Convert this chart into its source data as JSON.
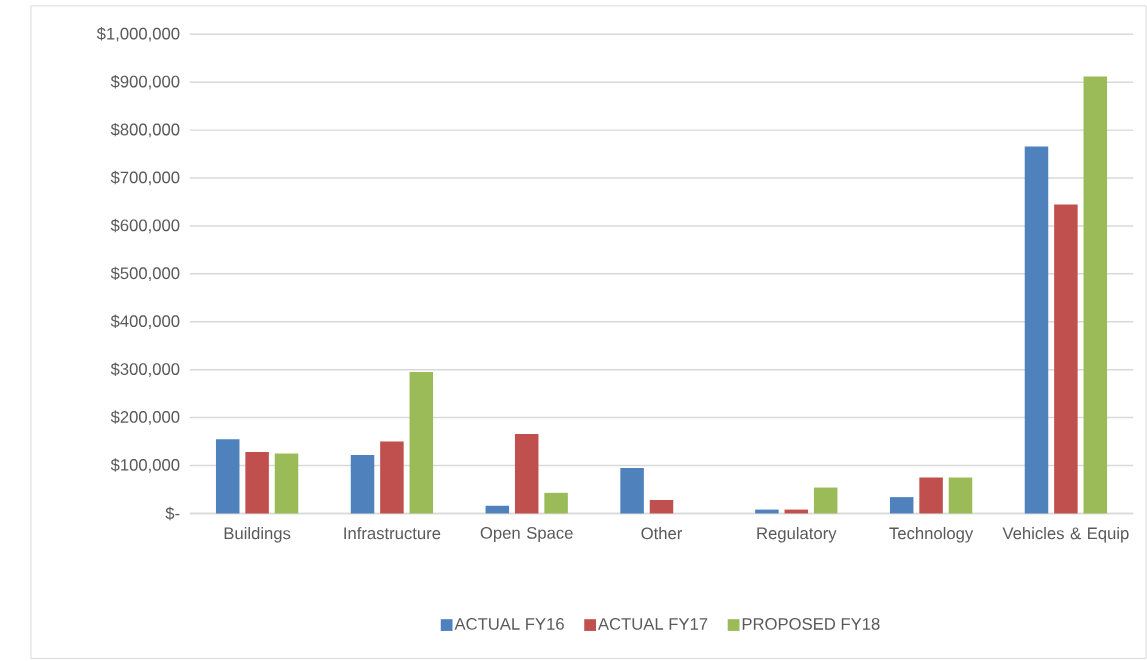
{
  "chart_data": {
    "type": "bar",
    "categories": [
      "Buildings",
      "Infrastructure",
      "Open Space",
      "Other",
      "Regulatory",
      "Technology",
      "Vehicles & Equip"
    ],
    "series": [
      {
        "name": "ACTUAL FY16",
        "color": "#4f81bd",
        "values": [
          155000,
          122000,
          16000,
          95000,
          8000,
          34000,
          766000
        ]
      },
      {
        "name": "ACTUAL FY17",
        "color": "#c0504d",
        "values": [
          128000,
          150000,
          166000,
          28000,
          8000,
          75000,
          645000
        ]
      },
      {
        "name": "PROPOSED FY18",
        "color": "#9bbb59",
        "values": [
          125000,
          295000,
          43000,
          null,
          54000,
          75000,
          912000
        ]
      }
    ],
    "ylim": [
      0,
      1000000
    ],
    "yticks": [
      {
        "value": 0,
        "label": "$-"
      },
      {
        "value": 100000,
        "label": "$100,000"
      },
      {
        "value": 200000,
        "label": "$200,000"
      },
      {
        "value": 300000,
        "label": "$300,000"
      },
      {
        "value": 400000,
        "label": "$400,000"
      },
      {
        "value": 500000,
        "label": "$500,000"
      },
      {
        "value": 600000,
        "label": "$600,000"
      },
      {
        "value": 700000,
        "label": "$700,000"
      },
      {
        "value": 800000,
        "label": "$800,000"
      },
      {
        "value": 900000,
        "label": "$900,000"
      },
      {
        "value": 1000000,
        "label": "$1,000,000"
      }
    ],
    "grid": "y",
    "legend": "bottom"
  }
}
